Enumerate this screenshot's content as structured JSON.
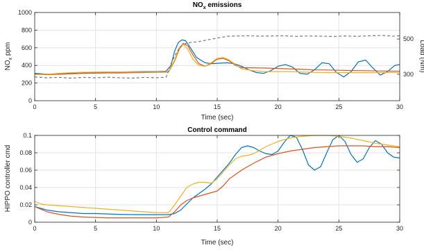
{
  "chart_data": [
    {
      "type": "line",
      "title": "NO",
      "title_subscript": "x",
      "title_suffix": " emissions",
      "xlabel": "Time (sec)",
      "ylabel": "NO",
      "ylabel_subscript": "x",
      "ylabel_suffix": " ppm",
      "y2label": "Load (Nm)",
      "xlim": [
        0,
        30
      ],
      "ylim": [
        0,
        1000
      ],
      "y2lim": [
        150,
        650
      ],
      "xticks": [
        "0",
        "5",
        "10",
        "15",
        "20",
        "25",
        "30"
      ],
      "xtick_values": [
        0,
        5,
        10,
        15,
        20,
        25,
        30
      ],
      "yticks": [
        "0",
        "200",
        "400",
        "600",
        "800",
        "1000"
      ],
      "ytick_values": [
        0,
        200,
        400,
        600,
        800,
        1000
      ],
      "y2ticks": [
        "300",
        "500"
      ],
      "y2tick_values": [
        300,
        500
      ],
      "grid": true,
      "series": [
        {
          "color": "#0072BD",
          "axis": "left",
          "x": [
            0,
            1,
            2,
            3,
            4,
            5,
            6,
            7,
            8,
            9,
            10,
            10.8,
            11.2,
            11.5,
            11.8,
            12.1,
            12.4,
            12.8,
            13.3,
            14,
            14.6,
            15.2,
            15.8,
            16.4,
            17,
            17.6,
            18.2,
            18.8,
            19.4,
            20,
            20.6,
            21.2,
            21.8,
            22.4,
            23,
            23.6,
            24.2,
            24.8,
            25.4,
            26,
            26.6,
            27.2,
            27.8,
            28.4,
            29,
            29.6,
            30
          ],
          "y": [
            310,
            300,
            305,
            315,
            320,
            322,
            325,
            325,
            328,
            330,
            330,
            335,
            400,
            560,
            660,
            690,
            680,
            600,
            490,
            430,
            420,
            425,
            430,
            420,
            390,
            350,
            320,
            310,
            340,
            390,
            410,
            380,
            310,
            300,
            350,
            430,
            420,
            320,
            270,
            330,
            440,
            460,
            370,
            290,
            330,
            400,
            410
          ]
        },
        {
          "color": "#D95319",
          "axis": "left",
          "x": [
            0,
            1,
            2,
            3,
            4,
            5,
            6,
            7,
            8,
            9,
            10,
            11,
            11.5,
            11.9,
            12.2,
            12.6,
            13,
            13.5,
            14,
            14.5,
            15,
            15.5,
            16,
            16.5,
            17,
            18,
            19,
            20,
            21,
            22,
            23,
            24,
            25,
            26,
            27,
            28,
            29,
            30
          ],
          "y": [
            300,
            295,
            300,
            305,
            310,
            312,
            315,
            315,
            318,
            320,
            322,
            325,
            450,
            590,
            650,
            620,
            520,
            420,
            390,
            420,
            470,
            480,
            450,
            400,
            375,
            372,
            370,
            365,
            360,
            355,
            350,
            348,
            345,
            342,
            340,
            338,
            336,
            335
          ]
        },
        {
          "color": "#EDB120",
          "axis": "left",
          "x": [
            0,
            1,
            2,
            3,
            4,
            5,
            6,
            7,
            8,
            9,
            10,
            11,
            11.5,
            11.9,
            12.2,
            12.6,
            13,
            13.5,
            14,
            14.5,
            15,
            15.5,
            16,
            16.5,
            17,
            18,
            19,
            20,
            21,
            22,
            23,
            24,
            25,
            26,
            27,
            28,
            29,
            30
          ],
          "y": [
            295,
            300,
            310,
            318,
            322,
            325,
            325,
            325,
            325,
            325,
            326,
            330,
            460,
            610,
            640,
            580,
            470,
            400,
            390,
            430,
            480,
            490,
            460,
            410,
            360,
            340,
            330,
            330,
            330,
            325,
            320,
            318,
            318,
            318,
            318,
            318,
            320,
            320
          ]
        },
        {
          "color": "#777777",
          "dashed": true,
          "axis": "right",
          "x": [
            0,
            1,
            2,
            3,
            4,
            5,
            6,
            7,
            8,
            9,
            10,
            10.8,
            11.2,
            11.7,
            12.2,
            12.8,
            13.5,
            14.2,
            15,
            15.8,
            16.6,
            17.5,
            18.5,
            19.5,
            20.5,
            21.5,
            22.5,
            23.5,
            24.5,
            25.5,
            26.5,
            27.5,
            28.5,
            29.5,
            30
          ],
          "y": [
            285,
            280,
            282,
            278,
            282,
            280,
            283,
            280,
            278,
            282,
            280,
            283,
            360,
            430,
            470,
            480,
            485,
            495,
            505,
            515,
            517,
            518,
            516,
            517,
            518,
            515,
            517,
            516,
            514,
            517,
            515,
            518,
            520,
            516,
            518
          ]
        }
      ]
    },
    {
      "type": "line",
      "title": "Control command",
      "xlabel": "Time (sec)",
      "ylabel": "HIPPO controller cmd",
      "xlim": [
        0,
        30
      ],
      "ylim": [
        0,
        0.1
      ],
      "xticks": [
        "0",
        "5",
        "10",
        "15",
        "20",
        "25",
        "30"
      ],
      "xtick_values": [
        0,
        5,
        10,
        15,
        20,
        25,
        30
      ],
      "yticks": [
        "0",
        "0.02",
        "0.04",
        "0.06",
        "0.08",
        "0.1"
      ],
      "ytick_values": [
        0,
        0.02,
        0.04,
        0.06,
        0.08,
        0.1
      ],
      "grid": true,
      "series": [
        {
          "color": "#0072BD",
          "x": [
            0,
            1,
            2,
            3,
            4,
            5,
            6,
            7,
            8,
            9,
            10,
            11,
            11.5,
            12,
            12.5,
            13,
            13.5,
            14,
            14.5,
            15,
            15.5,
            16,
            16.5,
            17,
            17.5,
            18,
            18.5,
            19,
            19.5,
            20,
            20.5,
            21,
            21.5,
            22,
            22.5,
            23,
            23.5,
            24,
            24.5,
            25,
            25.5,
            26,
            26.5,
            27,
            27.5,
            28,
            28.5,
            29,
            29.5,
            30
          ],
          "y": [
            0.018,
            0.014,
            0.012,
            0.011,
            0.01,
            0.01,
            0.0095,
            0.009,
            0.0088,
            0.0087,
            0.0087,
            0.0087,
            0.01,
            0.014,
            0.021,
            0.028,
            0.033,
            0.038,
            0.044,
            0.052,
            0.06,
            0.068,
            0.078,
            0.086,
            0.088,
            0.086,
            0.082,
            0.079,
            0.078,
            0.082,
            0.092,
            0.1,
            0.098,
            0.084,
            0.066,
            0.06,
            0.064,
            0.08,
            0.095,
            0.1,
            0.093,
            0.078,
            0.069,
            0.073,
            0.086,
            0.094,
            0.09,
            0.08,
            0.075,
            0.074
          ]
        },
        {
          "color": "#D95319",
          "x": [
            0,
            1,
            2,
            3,
            4,
            5,
            6,
            7,
            8,
            9,
            10,
            11,
            11.5,
            12,
            12.5,
            13,
            13.5,
            14,
            14.5,
            15,
            15.5,
            16,
            16.5,
            17,
            18,
            19,
            20,
            21,
            22,
            23,
            24,
            25,
            26,
            27,
            28,
            29,
            30
          ],
          "y": [
            0.018,
            0.012,
            0.009,
            0.007,
            0.006,
            0.0055,
            0.005,
            0.005,
            0.005,
            0.005,
            0.005,
            0.006,
            0.012,
            0.02,
            0.025,
            0.028,
            0.03,
            0.032,
            0.034,
            0.036,
            0.042,
            0.05,
            0.055,
            0.06,
            0.068,
            0.075,
            0.079,
            0.082,
            0.084,
            0.086,
            0.087,
            0.088,
            0.088,
            0.088,
            0.087,
            0.087,
            0.086
          ]
        },
        {
          "color": "#EDB120",
          "x": [
            0,
            0.5,
            1,
            2,
            3,
            4,
            5,
            6,
            7,
            8,
            9,
            10,
            11,
            11.5,
            12,
            12.5,
            13,
            13.5,
            14,
            14.5,
            15,
            15.5,
            16,
            16.5,
            17,
            17.5,
            18,
            19,
            20,
            21,
            22,
            23,
            24,
            25,
            26,
            27,
            28,
            29,
            30
          ],
          "y": [
            0.024,
            0.021,
            0.02,
            0.019,
            0.018,
            0.017,
            0.016,
            0.015,
            0.014,
            0.013,
            0.012,
            0.011,
            0.011,
            0.02,
            0.03,
            0.04,
            0.044,
            0.046,
            0.046,
            0.045,
            0.05,
            0.058,
            0.066,
            0.073,
            0.076,
            0.077,
            0.079,
            0.087,
            0.093,
            0.097,
            0.099,
            0.1,
            0.1,
            0.099,
            0.097,
            0.094,
            0.091,
            0.089,
            0.087
          ]
        }
      ]
    }
  ]
}
